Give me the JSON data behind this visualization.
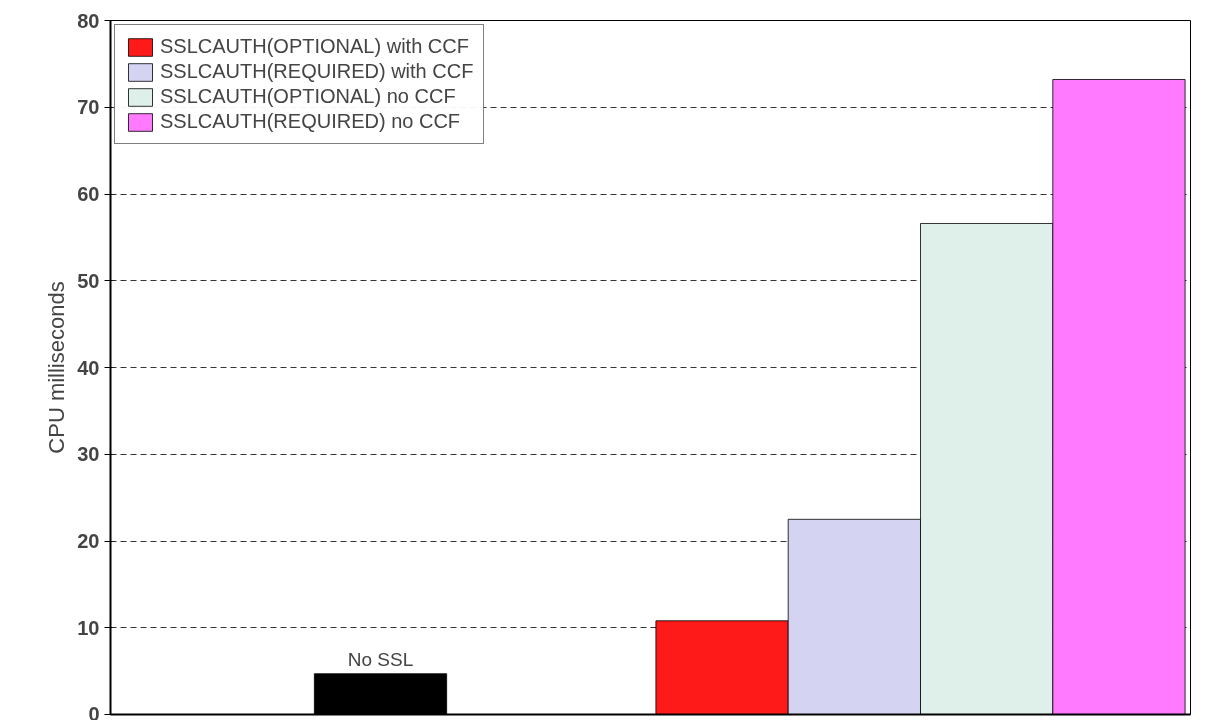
{
  "chart_data": {
    "type": "bar",
    "ylabel": "CPU milliseconds",
    "categories": [
      null,
      null
    ],
    "series": [
      {
        "name": "No SSL",
        "color": "#000000",
        "values": [
          4.7,
          null
        ]
      },
      {
        "name": "SSLCAUTH(OPTIONAL) with CCF",
        "color": "#ff1a1a",
        "values": [
          null,
          10.8
        ]
      },
      {
        "name": "SSLCAUTH(REQUIRED) with CCF",
        "color": "#d4d4f2",
        "values": [
          null,
          22.5
        ]
      },
      {
        "name": "SSLCAUTH(OPTIONAL) no CCF",
        "color": "#dff0ea",
        "values": [
          null,
          56.6
        ]
      },
      {
        "name": "SSLCAUTH(REQUIRED) no CCF",
        "color": "#ff7aff",
        "values": [
          null,
          73.2
        ]
      }
    ],
    "ylim": [
      0,
      80
    ],
    "yticks": [
      0,
      10,
      20,
      30,
      40,
      50,
      60,
      70,
      80
    ],
    "grid": "y",
    "legend": "top left"
  }
}
